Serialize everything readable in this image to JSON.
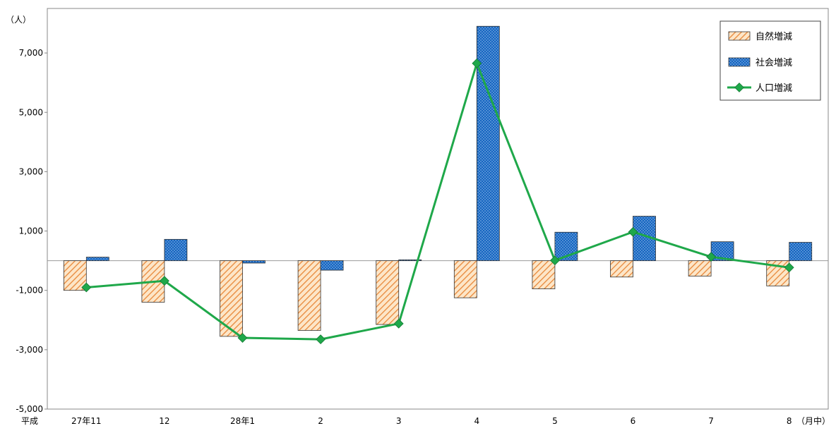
{
  "chart_data": {
    "type": "bar",
    "y_unit": "（人）",
    "x_prefix": "平成",
    "x_suffix": "（月中）",
    "categories": [
      "27年11",
      "12",
      "28年1",
      "2",
      "3",
      "4",
      "5",
      "6",
      "7",
      "8"
    ],
    "ylim": [
      -5000,
      8500
    ],
    "yticks": [
      -5000,
      -3000,
      -1000,
      1000,
      3000,
      5000,
      7000
    ],
    "ytick_labels": [
      "-5,000",
      "-3,000",
      "-1,000",
      "1,000",
      "3,000",
      "5,000",
      "7,000"
    ],
    "grid": false,
    "legend_position": "top-right",
    "series": [
      {
        "name": "自然増減",
        "kind": "bar",
        "color": "#f4a460",
        "values": [
          -1000,
          -1400,
          -2550,
          -2350,
          -2150,
          -1250,
          -950,
          -550,
          -520,
          -850
        ]
      },
      {
        "name": "社会増減",
        "kind": "bar",
        "color": "#1e73c8",
        "values": [
          120,
          720,
          -80,
          -320,
          30,
          7900,
          960,
          1500,
          640,
          620
        ]
      },
      {
        "name": "人口増減",
        "kind": "line",
        "color": "#1fa84a",
        "values": [
          -900,
          -680,
          -2600,
          -2650,
          -2120,
          6650,
          10,
          970,
          130,
          -230
        ]
      }
    ]
  }
}
